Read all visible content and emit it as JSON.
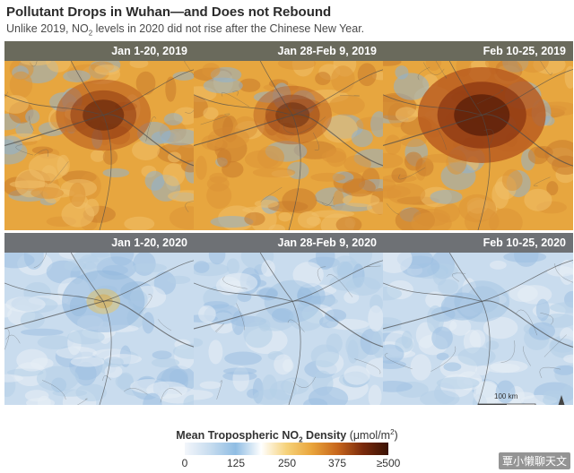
{
  "title": "Pollutant Drops in Wuhan—and Does not Rebound",
  "subtitle_pre": "Unlike 2019, NO",
  "subtitle_sub": "2",
  "subtitle_post": " levels in 2020 did not rise after the Chinese New Year.",
  "panels_2019": [
    {
      "label": "Jan 1-20, 2019",
      "hotspot": 0.55
    },
    {
      "label": "Jan 28-Feb 9, 2019",
      "hotspot": 0.35
    },
    {
      "label": "Feb 10-25, 2019",
      "hotspot": 0.95
    }
  ],
  "panels_2020": [
    {
      "label": "Jan 1-20, 2020",
      "hotspot": 0.45
    },
    {
      "label": "Jan 28-Feb 9, 2020",
      "hotspot": 0.12
    },
    {
      "label": "Feb 10-25, 2020",
      "hotspot": 0.1
    }
  ],
  "scale_label": "100 km",
  "legend": {
    "title_pre": "Mean Tropospheric NO",
    "title_sub": "2",
    "title_mid": " Density ",
    "unit_pre": "(μmol/m",
    "unit_sup": "2",
    "unit_post": ")",
    "ticks": [
      "0",
      "125",
      "250",
      "375",
      "≥500"
    ],
    "colors": [
      "#f3f6fb",
      "#c7dcef",
      "#8fbde3",
      "#ffffff",
      "#f6d27a",
      "#e9a43b",
      "#c7661c",
      "#7a2a0c",
      "#3a1204"
    ]
  },
  "watermark": "覃小懒聊天文"
}
